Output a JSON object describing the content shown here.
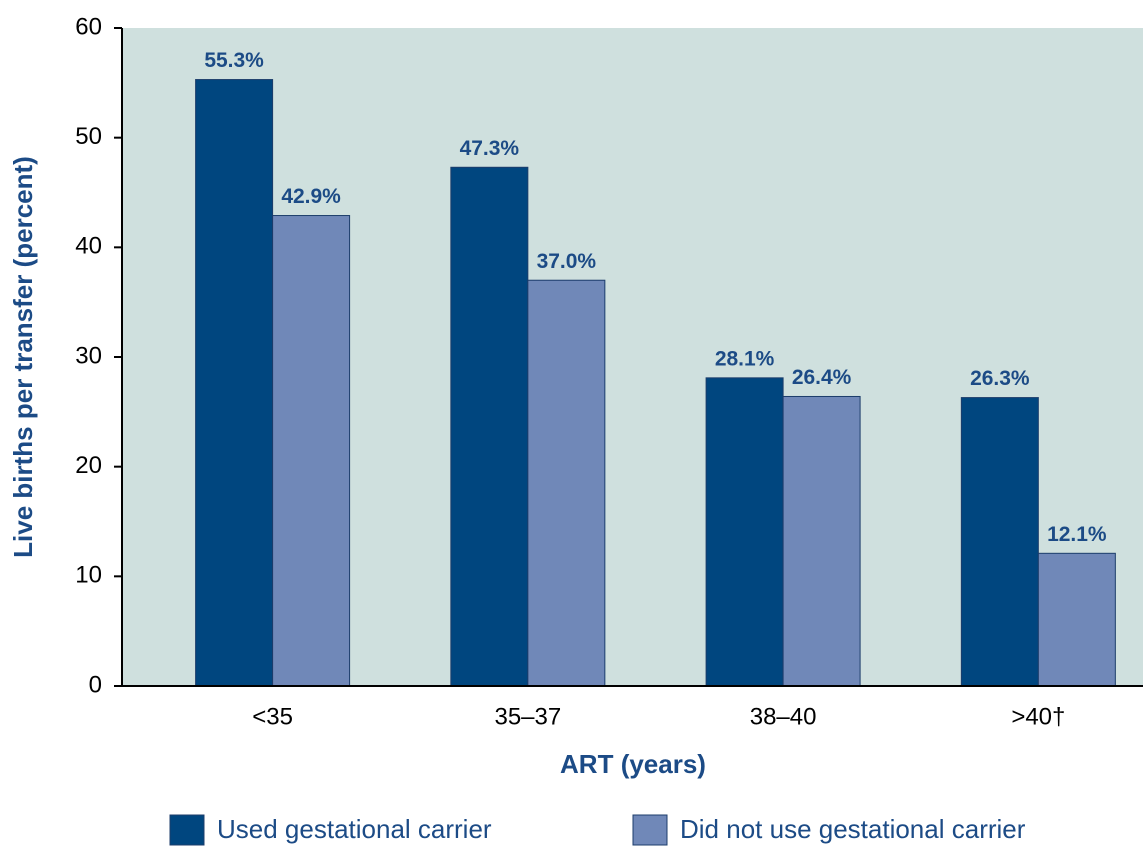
{
  "chart_data": {
    "type": "bar",
    "x_label": "ART (years)",
    "y_label": "Live births per transfer (percent)",
    "categories": [
      "<35",
      "35–37",
      "38–40",
      ">40†"
    ],
    "series": [
      {
        "name": "Used gestational carrier",
        "color": "#00467f",
        "values": [
          55.3,
          47.3,
          28.1,
          26.3
        ],
        "value_labels": [
          "55.3%",
          "47.3%",
          "28.1%",
          "26.3%"
        ]
      },
      {
        "name": "Did not use gestational carrier",
        "color": "#7088b8",
        "values": [
          42.9,
          37.0,
          26.4,
          12.1
        ],
        "value_labels": [
          "42.9%",
          "37.0%",
          "26.4%",
          "12.1%"
        ]
      }
    ],
    "ylim": [
      0,
      60
    ],
    "yticks": [
      0,
      10,
      20,
      30,
      40,
      50,
      60
    ],
    "background": "#cfe0de"
  }
}
